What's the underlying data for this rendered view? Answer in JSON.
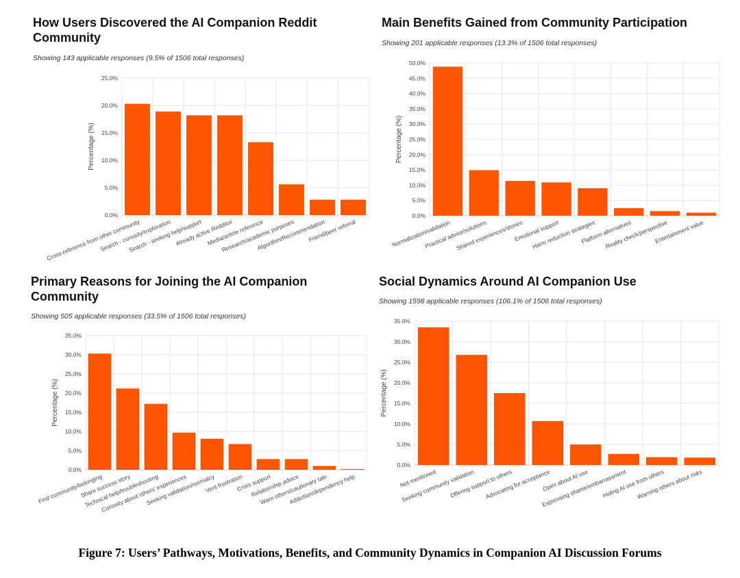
{
  "chart_data": [
    {
      "type": "bar",
      "title": "How Users Discovered the AI Companion Reddit Community",
      "subtitle": "Showing 143 applicable responses (9.5% of 1506 total responses)",
      "ylabel": "Percentage (%)",
      "xlabel": "",
      "ylim": [
        0,
        25
      ],
      "yticks": [
        "0.0%",
        "5.0%",
        "10.0%",
        "15.0%",
        "20.0%",
        "25.0%"
      ],
      "grid": true,
      "color": "#ff5500",
      "categories": [
        "Cross-reference from other community",
        "Search - curiosity/exploration",
        "Search - seeking help/support",
        "Already active Redditor",
        "Media/article reference",
        "Research/academic purposes",
        "Algorithm/Recommendation",
        "Friend/peer referral"
      ],
      "values": [
        20.3,
        18.9,
        18.2,
        18.2,
        13.3,
        5.6,
        2.8,
        2.8
      ]
    },
    {
      "type": "bar",
      "title": "Main Benefits Gained from Community Participation",
      "subtitle": "Showing 201 applicable responses (13.3% of 1506 total responses)",
      "ylabel": "Percentage (%)",
      "xlabel": "",
      "ylim": [
        0,
        50
      ],
      "yticks": [
        "0.0%",
        "5.0%",
        "10.0%",
        "15.0%",
        "20.0%",
        "25.0%",
        "30.0%",
        "35.0%",
        "40.0%",
        "45.0%",
        "50.0%"
      ],
      "grid": true,
      "color": "#ff5500",
      "categories": [
        "Normalization/validation",
        "Practical advice/solutions",
        "Shared experiences/stories",
        "Emotional support",
        "Harm reduction strategies",
        "Platform alternatives",
        "Reality check/perspective",
        "Entertainment value"
      ],
      "values": [
        48.8,
        14.9,
        11.4,
        10.9,
        9.0,
        2.5,
        1.5,
        1.0
      ]
    },
    {
      "type": "bar",
      "title": "Primary Reasons for Joining the AI Companion Community",
      "subtitle": "Showing 505 applicable responses (33.5% of 1506 total responses)",
      "ylabel": "Percentage (%)",
      "xlabel": "",
      "ylim": [
        0,
        35
      ],
      "yticks": [
        "0.0%",
        "5.0%",
        "10.0%",
        "15.0%",
        "20.0%",
        "25.0%",
        "30.0%",
        "35.0%"
      ],
      "grid": true,
      "color": "#ff5500",
      "categories": [
        "Find community/belonging",
        "Share success story",
        "Technical help/troubleshooting",
        "Curiosity about others' experiences",
        "Seeking validation/normalcy",
        "Vent frustration",
        "Crisis support",
        "Relationship advice",
        "Warn others/cautionary tale",
        "Addiction/dependency help"
      ],
      "values": [
        30.3,
        21.2,
        17.2,
        9.7,
        8.1,
        6.7,
        2.8,
        2.8,
        1.0,
        0.2
      ]
    },
    {
      "type": "bar",
      "title": "Social Dynamics Around AI Companion Use",
      "subtitle": "Showing 1598 applicable responses (106.1% of 1506 total responses)",
      "ylabel": "Percentage (%)",
      "xlabel": "",
      "ylim": [
        0,
        35
      ],
      "yticks": [
        "0.0%",
        "5.0%",
        "10.0%",
        "15.0%",
        "20.0%",
        "25.0%",
        "30.0%",
        "35.0%"
      ],
      "grid": true,
      "color": "#ff5500",
      "categories": [
        "Not mentioned",
        "Seeking community validation",
        "Offering support to others",
        "Advocating for acceptance",
        "Open about AI use",
        "Expressing shame/embarrassment",
        "Hiding AI use from others",
        "Warning others about risks"
      ],
      "values": [
        33.5,
        26.8,
        17.5,
        10.7,
        5.0,
        2.7,
        1.9,
        1.8
      ]
    }
  ],
  "figure_caption": "Figure 7: Users’ Pathways, Motivations, Benefits, and Community Dynamics in Companion AI Discussion Forums"
}
